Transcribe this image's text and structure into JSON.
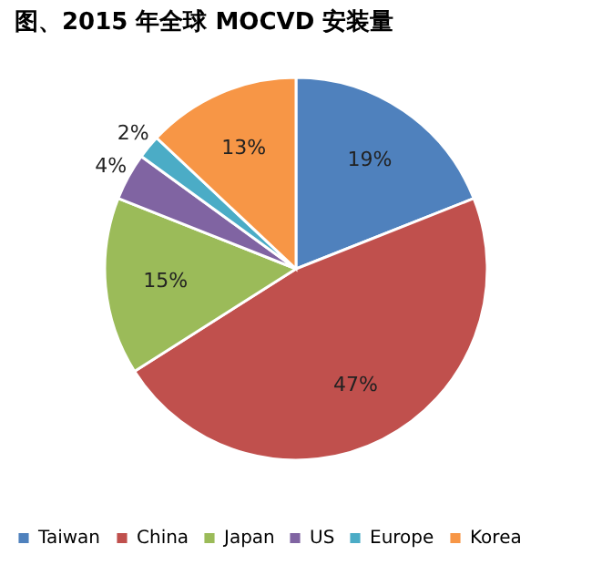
{
  "chart_data": {
    "type": "pie",
    "title": "图、2015 年全球 MOCVD 安装量",
    "categories": [
      "Taiwan",
      "China",
      "Japan",
      "US",
      "Europe",
      "Korea"
    ],
    "values": [
      19,
      47,
      15,
      4,
      2,
      13
    ],
    "value_labels": [
      "19%",
      "47%",
      "15%",
      "4%",
      "2%",
      "13%"
    ],
    "colors": [
      "#4f81bd",
      "#c0504d",
      "#9bbb59",
      "#8064a2",
      "#4bacc6",
      "#f79646"
    ],
    "legend": "bottom"
  }
}
